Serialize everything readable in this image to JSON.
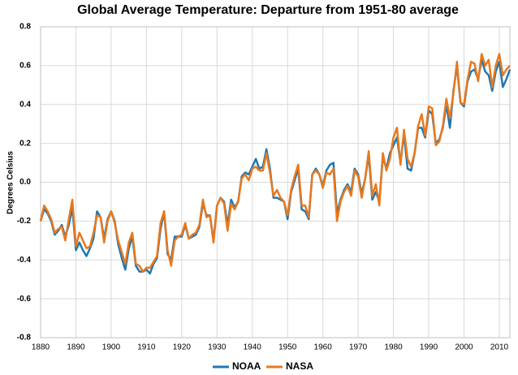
{
  "chart_data": {
    "type": "line",
    "title": "Global Average Temperature: Departure from 1951-80 average",
    "y_label": "Degrees Celsius",
    "x": [
      1880,
      1881,
      1882,
      1883,
      1884,
      1885,
      1886,
      1887,
      1888,
      1889,
      1890,
      1891,
      1892,
      1893,
      1894,
      1895,
      1896,
      1897,
      1898,
      1899,
      1900,
      1901,
      1902,
      1903,
      1904,
      1905,
      1906,
      1907,
      1908,
      1909,
      1910,
      1911,
      1912,
      1913,
      1914,
      1915,
      1916,
      1917,
      1918,
      1919,
      1920,
      1921,
      1922,
      1923,
      1924,
      1925,
      1926,
      1927,
      1928,
      1929,
      1930,
      1931,
      1932,
      1933,
      1934,
      1935,
      1936,
      1937,
      1938,
      1939,
      1940,
      1941,
      1942,
      1943,
      1944,
      1945,
      1946,
      1947,
      1948,
      1949,
      1950,
      1951,
      1952,
      1953,
      1954,
      1955,
      1956,
      1957,
      1958,
      1959,
      1960,
      1961,
      1962,
      1963,
      1964,
      1965,
      1966,
      1967,
      1968,
      1969,
      1970,
      1971,
      1972,
      1973,
      1974,
      1975,
      1976,
      1977,
      1978,
      1979,
      1980,
      1981,
      1982,
      1983,
      1984,
      1985,
      1986,
      1987,
      1988,
      1989,
      1990,
      1991,
      1992,
      1993,
      1994,
      1995,
      1996,
      1997,
      1998,
      1999,
      2000,
      2001,
      2002,
      2003,
      2004,
      2005,
      2006,
      2007,
      2008,
      2009,
      2010,
      2011,
      2012,
      2013
    ],
    "series": [
      {
        "name": "NOAA",
        "color": "#1f77b4",
        "values": [
          -0.2,
          -0.14,
          -0.16,
          -0.2,
          -0.27,
          -0.25,
          -0.22,
          -0.28,
          -0.22,
          -0.13,
          -0.35,
          -0.31,
          -0.35,
          -0.38,
          -0.34,
          -0.29,
          -0.15,
          -0.18,
          -0.29,
          -0.19,
          -0.15,
          -0.2,
          -0.32,
          -0.39,
          -0.45,
          -0.34,
          -0.28,
          -0.43,
          -0.46,
          -0.46,
          -0.45,
          -0.47,
          -0.42,
          -0.39,
          -0.24,
          -0.15,
          -0.37,
          -0.4,
          -0.28,
          -0.28,
          -0.28,
          -0.22,
          -0.29,
          -0.28,
          -0.27,
          -0.23,
          -0.11,
          -0.17,
          -0.17,
          -0.3,
          -0.12,
          -0.08,
          -0.1,
          -0.22,
          -0.09,
          -0.13,
          -0.1,
          0.03,
          0.05,
          0.04,
          0.08,
          0.12,
          0.07,
          0.08,
          0.17,
          0.07,
          -0.08,
          -0.08,
          -0.09,
          -0.1,
          -0.19,
          -0.05,
          0.01,
          0.07,
          -0.14,
          -0.15,
          -0.19,
          0.04,
          0.07,
          0.04,
          -0.02,
          0.06,
          0.09,
          0.1,
          -0.16,
          -0.09,
          -0.04,
          -0.01,
          -0.05,
          0.07,
          0.04,
          -0.06,
          0.02,
          0.14,
          -0.09,
          -0.05,
          -0.1,
          0.13,
          0.07,
          0.15,
          0.19,
          0.23,
          0.1,
          0.25,
          0.07,
          0.06,
          0.15,
          0.28,
          0.28,
          0.23,
          0.37,
          0.35,
          0.2,
          0.22,
          0.28,
          0.4,
          0.28,
          0.47,
          0.6,
          0.41,
          0.39,
          0.52,
          0.57,
          0.58,
          0.53,
          0.63,
          0.57,
          0.55,
          0.47,
          0.57,
          0.62,
          0.49,
          0.53,
          0.58
        ]
      },
      {
        "name": "NASA",
        "color": "#e8791e",
        "values": [
          -0.2,
          -0.12,
          -0.15,
          -0.19,
          -0.26,
          -0.24,
          -0.23,
          -0.3,
          -0.19,
          -0.09,
          -0.33,
          -0.26,
          -0.3,
          -0.34,
          -0.33,
          -0.26,
          -0.17,
          -0.18,
          -0.31,
          -0.2,
          -0.15,
          -0.21,
          -0.3,
          -0.36,
          -0.42,
          -0.31,
          -0.26,
          -0.42,
          -0.43,
          -0.46,
          -0.44,
          -0.44,
          -0.41,
          -0.38,
          -0.21,
          -0.15,
          -0.35,
          -0.43,
          -0.3,
          -0.28,
          -0.27,
          -0.21,
          -0.29,
          -0.27,
          -0.26,
          -0.22,
          -0.09,
          -0.18,
          -0.17,
          -0.31,
          -0.12,
          -0.08,
          -0.11,
          -0.25,
          -0.11,
          -0.14,
          -0.1,
          0.02,
          0.04,
          0.01,
          0.07,
          0.08,
          0.06,
          0.06,
          0.15,
          0.05,
          -0.07,
          -0.04,
          -0.08,
          -0.1,
          -0.17,
          -0.04,
          0.03,
          0.09,
          -0.12,
          -0.12,
          -0.18,
          0.04,
          0.06,
          0.04,
          -0.03,
          0.05,
          0.04,
          0.07,
          -0.2,
          -0.1,
          -0.05,
          -0.02,
          -0.07,
          0.06,
          0.03,
          -0.08,
          0.02,
          0.16,
          -0.07,
          -0.01,
          -0.12,
          0.15,
          0.06,
          0.12,
          0.23,
          0.28,
          0.09,
          0.27,
          0.12,
          0.08,
          0.15,
          0.29,
          0.35,
          0.24,
          0.39,
          0.38,
          0.19,
          0.21,
          0.29,
          0.43,
          0.33,
          0.46,
          0.62,
          0.41,
          0.4,
          0.53,
          0.62,
          0.61,
          0.52,
          0.66,
          0.6,
          0.63,
          0.49,
          0.6,
          0.66,
          0.55,
          0.58,
          0.6
        ]
      }
    ],
    "xlim": [
      1880,
      2013
    ],
    "xticks": [
      1880,
      1890,
      1900,
      1910,
      1920,
      1930,
      1940,
      1950,
      1960,
      1970,
      1980,
      1990,
      2000,
      2010
    ],
    "ylim": [
      -0.8,
      0.8
    ],
    "yticks": [
      -0.8,
      -0.6,
      -0.4,
      -0.2,
      {
        "value": 0,
        "label": "0.0"
      },
      0.2,
      0.4,
      0.6,
      0.8
    ],
    "grid": true,
    "legend": "bottom"
  }
}
